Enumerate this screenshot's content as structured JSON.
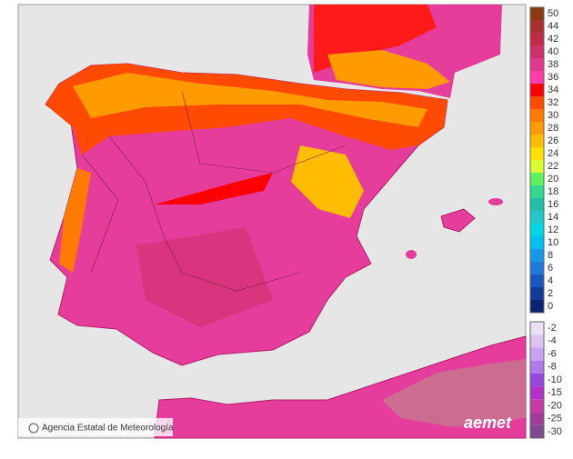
{
  "legend": {
    "items": [
      {
        "label": "50",
        "color": "#8b3a10"
      },
      {
        "label": "44",
        "color": "#a8302e"
      },
      {
        "label": "42",
        "color": "#c02a46"
      },
      {
        "label": "40",
        "color": "#d0306a"
      },
      {
        "label": "38",
        "color": "#e0388c"
      },
      {
        "label": "36",
        "color": "#ff3ca8"
      },
      {
        "label": "34",
        "color": "#ff0000"
      },
      {
        "label": "32",
        "color": "#ff4a00"
      },
      {
        "label": "30",
        "color": "#ff7a00"
      },
      {
        "label": "28",
        "color": "#ff9a00"
      },
      {
        "label": "26",
        "color": "#ffbc00"
      },
      {
        "label": "24",
        "color": "#ffe000"
      },
      {
        "label": "22",
        "color": "#d8ff30"
      },
      {
        "label": "20",
        "color": "#60f060"
      },
      {
        "label": "18",
        "color": "#30d890"
      },
      {
        "label": "16",
        "color": "#20c0a8"
      },
      {
        "label": "14",
        "color": "#20c8c8"
      },
      {
        "label": "12",
        "color": "#00d8e8"
      },
      {
        "label": "10",
        "color": "#00c0f0"
      },
      {
        "label": "8",
        "color": "#1898e8"
      },
      {
        "label": "6",
        "color": "#2078d8"
      },
      {
        "label": "4",
        "color": "#1a58c0"
      },
      {
        "label": "2",
        "color": "#143a98"
      },
      {
        "label": "0",
        "color": "#0c2470"
      }
    ],
    "negative_items": [
      {
        "label": "-2",
        "color": "#ece0f4"
      },
      {
        "label": "-4",
        "color": "#dcc4f0"
      },
      {
        "label": "-6",
        "color": "#c8a4f0"
      },
      {
        "label": "-8",
        "color": "#b07ae8"
      },
      {
        "label": "-10",
        "color": "#9448e0"
      },
      {
        "label": "-15",
        "color": "#b030c8"
      },
      {
        "label": "-20",
        "color": "#c83aa8"
      },
      {
        "label": "-25",
        "color": "#a03c98"
      },
      {
        "label": "-30",
        "color": "#804890"
      }
    ]
  },
  "credit": "Agencia Estatal de Meteorología",
  "logo": "aemet"
}
